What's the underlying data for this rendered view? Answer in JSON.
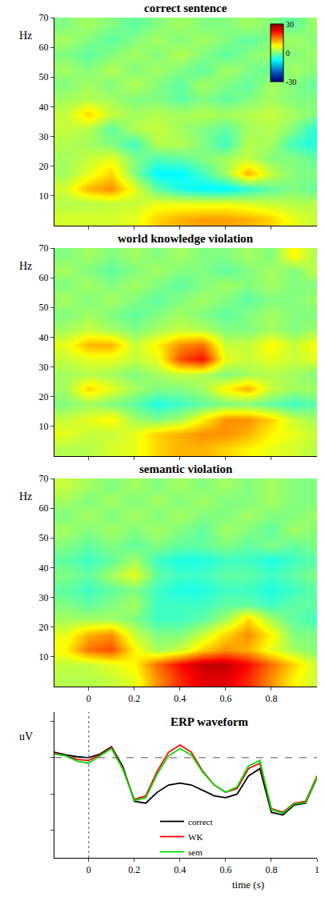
{
  "chart_data": [
    {
      "type": "heatmap",
      "title": "correct sentence",
      "y_label": "Hz",
      "x": [
        -0.1,
        0,
        0.1,
        0.2,
        0.3,
        0.4,
        0.5,
        0.6,
        0.7,
        0.8,
        0.9,
        1.0
      ],
      "y": [
        2.5,
        7.5,
        12.5,
        17.5,
        22.5,
        27.5,
        32.5,
        37.5,
        42.5,
        47.5,
        52.5,
        57.5,
        62.5,
        67.5
      ],
      "z": [
        [
          5,
          5,
          5,
          6,
          10,
          12,
          13,
          13,
          12,
          10,
          6,
          4
        ],
        [
          3,
          3,
          4,
          4,
          6,
          6,
          6,
          6,
          5,
          4,
          3,
          3
        ],
        [
          5,
          12,
          14,
          6,
          -2,
          -6,
          -8,
          -8,
          -5,
          -2,
          0,
          -2
        ],
        [
          2,
          6,
          10,
          0,
          -8,
          -8,
          -4,
          2,
          12,
          4,
          0,
          0
        ],
        [
          2,
          4,
          6,
          0,
          -3,
          -2,
          0,
          2,
          4,
          0,
          0,
          -2
        ],
        [
          3,
          2,
          0,
          -4,
          3,
          3,
          0,
          -4,
          3,
          2,
          -4,
          -6
        ],
        [
          4,
          3,
          -2,
          3,
          4,
          2,
          0,
          -2,
          2,
          3,
          0,
          -6
        ],
        [
          4,
          10,
          4,
          2,
          3,
          2,
          3,
          2,
          3,
          4,
          2,
          0
        ],
        [
          2,
          3,
          2,
          0,
          0,
          -2,
          0,
          -2,
          0,
          2,
          0,
          0
        ],
        [
          0,
          2,
          0,
          3,
          0,
          -2,
          2,
          0,
          -2,
          2,
          0,
          -2
        ],
        [
          2,
          0,
          3,
          0,
          2,
          0,
          -2,
          2,
          0,
          -2,
          2,
          0
        ],
        [
          0,
          -2,
          0,
          2,
          0,
          3,
          0,
          -2,
          0,
          2,
          0,
          2
        ],
        [
          2,
          0,
          -2,
          0,
          2,
          0,
          2,
          0,
          -2,
          0,
          2,
          0
        ],
        [
          0,
          2,
          0,
          -2,
          0,
          2,
          0,
          0,
          2,
          0,
          -2,
          2
        ]
      ],
      "xlim": [
        -0.15,
        1.0
      ],
      "ylim": [
        0,
        70
      ],
      "xticks": [
        0,
        0.2,
        0.4,
        0.6,
        0.8
      ],
      "yticks": [
        10,
        20,
        30,
        40,
        50,
        60,
        70
      ],
      "zlim": [
        -30,
        30
      ],
      "zticks": [
        -30,
        0,
        30
      ],
      "tick_labels": "y"
    },
    {
      "type": "heatmap",
      "title": "world knowledge violation",
      "y_label": "Hz",
      "x": [
        -0.1,
        0,
        0.1,
        0.2,
        0.3,
        0.4,
        0.5,
        0.6,
        0.7,
        0.8,
        0.9,
        1.0
      ],
      "y": [
        2.5,
        7.5,
        12.5,
        17.5,
        22.5,
        27.5,
        32.5,
        37.5,
        42.5,
        47.5,
        52.5,
        57.5,
        62.5,
        67.5
      ],
      "z": [
        [
          3,
          3,
          5,
          6,
          10,
          12,
          12,
          10,
          8,
          6,
          5,
          3
        ],
        [
          6,
          4,
          4,
          6,
          10,
          12,
          14,
          14,
          12,
          8,
          6,
          4
        ],
        [
          4,
          6,
          8,
          2,
          0,
          2,
          8,
          14,
          14,
          10,
          4,
          2
        ],
        [
          0,
          2,
          0,
          -2,
          -6,
          -4,
          -2,
          0,
          0,
          -2,
          -4,
          -2
        ],
        [
          2,
          10,
          6,
          2,
          0,
          0,
          2,
          8,
          12,
          4,
          2,
          2
        ],
        [
          2,
          3,
          2,
          0,
          2,
          4,
          3,
          0,
          2,
          3,
          2,
          0
        ],
        [
          4,
          6,
          6,
          4,
          6,
          18,
          22,
          6,
          4,
          6,
          4,
          6
        ],
        [
          6,
          12,
          12,
          4,
          8,
          14,
          16,
          4,
          4,
          8,
          4,
          8
        ],
        [
          2,
          4,
          2,
          0,
          2,
          4,
          3,
          0,
          0,
          2,
          0,
          2
        ],
        [
          0,
          2,
          0,
          -2,
          0,
          2,
          0,
          -2,
          0,
          2,
          0,
          0
        ],
        [
          2,
          0,
          2,
          0,
          -2,
          0,
          2,
          0,
          -2,
          0,
          0,
          2
        ],
        [
          0,
          2,
          0,
          2,
          0,
          -2,
          0,
          2,
          0,
          2,
          0,
          0
        ],
        [
          2,
          0,
          -2,
          0,
          2,
          0,
          0,
          -2,
          0,
          2,
          0,
          4
        ],
        [
          0,
          2,
          0,
          2,
          0,
          2,
          0,
          0,
          2,
          0,
          8,
          2
        ]
      ],
      "xlim": [
        -0.15,
        1.0
      ],
      "ylim": [
        0,
        70
      ],
      "xticks": [
        0,
        0.2,
        0.4,
        0.6,
        0.8
      ],
      "yticks": [
        10,
        20,
        30,
        40,
        50,
        60,
        70
      ],
      "zlim": [
        -30,
        30
      ],
      "tick_labels": "y"
    },
    {
      "type": "heatmap",
      "title": "semantic violation",
      "y_label": "Hz",
      "x": [
        -0.1,
        0,
        0.1,
        0.2,
        0.3,
        0.4,
        0.5,
        0.6,
        0.7,
        0.8,
        0.9,
        1.0
      ],
      "y": [
        2.5,
        7.5,
        12.5,
        17.5,
        22.5,
        27.5,
        32.5,
        37.5,
        42.5,
        47.5,
        52.5,
        57.5,
        62.5,
        67.5
      ],
      "z": [
        [
          3,
          3,
          4,
          6,
          14,
          20,
          24,
          24,
          20,
          14,
          8,
          4
        ],
        [
          4,
          4,
          6,
          8,
          16,
          22,
          26,
          26,
          22,
          16,
          10,
          4
        ],
        [
          8,
          16,
          18,
          8,
          2,
          4,
          10,
          14,
          12,
          6,
          2,
          0
        ],
        [
          6,
          12,
          14,
          4,
          0,
          0,
          4,
          10,
          14,
          8,
          0,
          0
        ],
        [
          2,
          2,
          2,
          0,
          -4,
          -4,
          -2,
          2,
          10,
          2,
          -2,
          -4
        ],
        [
          0,
          -2,
          0,
          2,
          -4,
          -4,
          -4,
          -2,
          -2,
          -4,
          -2,
          -2
        ],
        [
          -2,
          -4,
          -2,
          0,
          -4,
          -6,
          -6,
          -4,
          -4,
          -6,
          -4,
          -2
        ],
        [
          0,
          -2,
          2,
          6,
          -2,
          -4,
          -4,
          -2,
          -2,
          -4,
          -2,
          0
        ],
        [
          -2,
          -4,
          -2,
          2,
          -4,
          -6,
          -6,
          -4,
          -4,
          -6,
          -4,
          -2
        ],
        [
          0,
          -2,
          0,
          -2,
          0,
          -2,
          -2,
          0,
          -2,
          0,
          -2,
          0
        ],
        [
          2,
          0,
          2,
          0,
          2,
          0,
          -2,
          2,
          0,
          -2,
          2,
          0
        ],
        [
          0,
          2,
          0,
          2,
          0,
          2,
          0,
          0,
          2,
          0,
          0,
          2
        ],
        [
          2,
          0,
          2,
          0,
          2,
          0,
          2,
          0,
          0,
          2,
          0,
          0
        ],
        [
          4,
          2,
          0,
          2,
          0,
          2,
          0,
          2,
          0,
          2,
          0,
          0
        ]
      ],
      "xlim": [
        -0.15,
        1.0
      ],
      "ylim": [
        0,
        70
      ],
      "xticks": [
        0,
        0.2,
        0.4,
        0.6,
        0.8
      ],
      "yticks": [
        10,
        20,
        30,
        40,
        50,
        60,
        70
      ],
      "zlim": [
        -30,
        30
      ]
    },
    {
      "type": "line",
      "title": "ERP waveform",
      "y_label": "uV",
      "x_label": "time (s)",
      "x": [
        -0.15,
        -0.1,
        -0.05,
        0,
        0.05,
        0.1,
        0.15,
        0.2,
        0.25,
        0.3,
        0.35,
        0.4,
        0.45,
        0.5,
        0.55,
        0.6,
        0.65,
        0.7,
        0.75,
        0.8,
        0.85,
        0.9,
        0.95,
        1.0
      ],
      "series": [
        {
          "name": "correct",
          "color": "#000000",
          "values": [
            0.6,
            0.3,
            0.1,
            0.0,
            0.4,
            1.2,
            -1.0,
            -4.8,
            -5.0,
            -3.8,
            -3.0,
            -2.8,
            -3.0,
            -3.6,
            -4.2,
            -4.4,
            -4.0,
            -2.0,
            -1.2,
            -6.0,
            -6.3,
            -5.2,
            -5.0,
            -2.2
          ]
        },
        {
          "name": "WK",
          "color": "#ff0000",
          "values": [
            0.5,
            0.2,
            -0.2,
            -0.3,
            0.3,
            1.1,
            -1.2,
            -4.6,
            -4.2,
            -1.5,
            0.6,
            1.4,
            0.6,
            -1.5,
            -3.0,
            -3.8,
            -3.4,
            -1.2,
            -0.6,
            -5.6,
            -6.0,
            -5.0,
            -4.8,
            -2.0
          ]
        },
        {
          "name": "sem",
          "color": "#00dd00",
          "values": [
            0.4,
            0.2,
            -0.4,
            -0.6,
            0.2,
            1.0,
            -1.3,
            -4.7,
            -4.4,
            -1.8,
            0.2,
            1.0,
            0.3,
            -1.6,
            -3.0,
            -3.8,
            -3.2,
            -0.9,
            -0.3,
            -5.7,
            -6.1,
            -5.1,
            -4.9,
            -2.1
          ]
        }
      ],
      "xlim": [
        -0.15,
        1.0
      ],
      "ylim": [
        -11,
        5
      ],
      "xticks": [
        0,
        0.2,
        0.4,
        0.6,
        0.8,
        1
      ],
      "yticks": [
        -8,
        -4,
        0,
        4
      ],
      "tick_labels": "x",
      "legend": "bottom"
    }
  ]
}
